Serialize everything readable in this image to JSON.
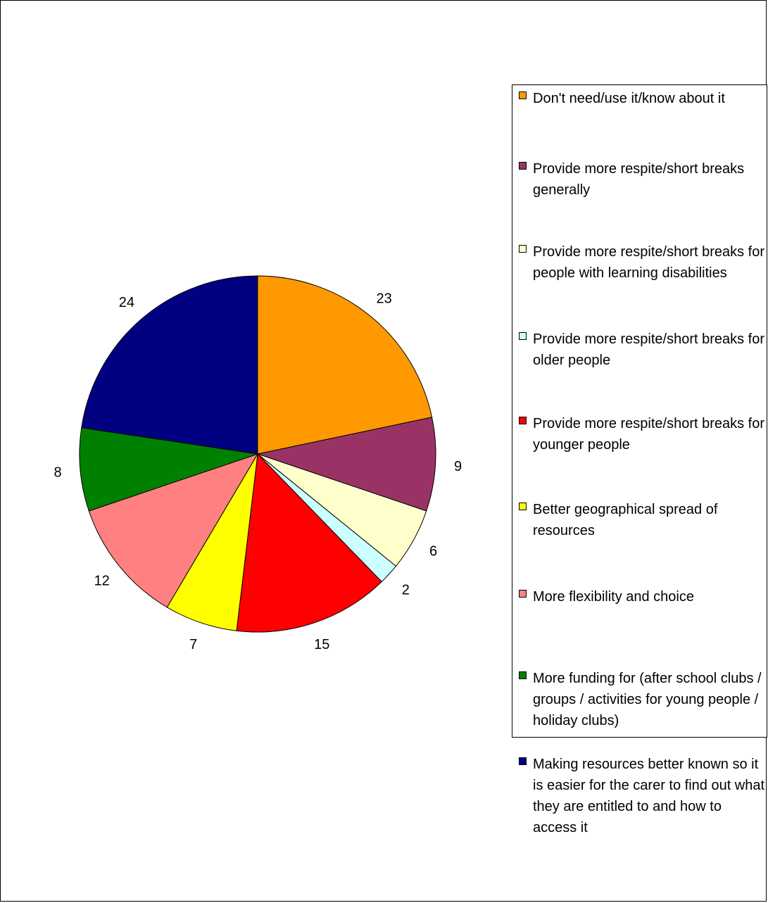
{
  "chart_data": {
    "type": "pie",
    "title": "",
    "legend_position": "right",
    "slices": [
      {
        "label": "Don't need/use it/know about it",
        "value": 23,
        "color": "#FF9900"
      },
      {
        "label": "Provide more respite/short breaks generally",
        "value": 9,
        "color": "#993366"
      },
      {
        "label": "Provide more respite/short breaks for people with learning disabilities",
        "value": 6,
        "color": "#FFFFCC"
      },
      {
        "label": "Provide more respite/short breaks for older people",
        "value": 2,
        "color": "#CCFFFF"
      },
      {
        "label": "Provide more respite/short breaks for younger people",
        "value": 15,
        "color": "#FF0000"
      },
      {
        "label": "Better geographical spread of resources",
        "value": 7,
        "color": "#FFFF00"
      },
      {
        "label": "More flexibility and choice",
        "value": 12,
        "color": "#FF8080"
      },
      {
        "label": "More funding for (after school clubs / groups / activities for young people / holiday clubs)",
        "value": 8,
        "color": "#008000"
      },
      {
        "label": "Making resources better known so it is easier for the carer to find out what they are entitled to and how to access it",
        "value": 24,
        "color": "#000080"
      }
    ]
  }
}
